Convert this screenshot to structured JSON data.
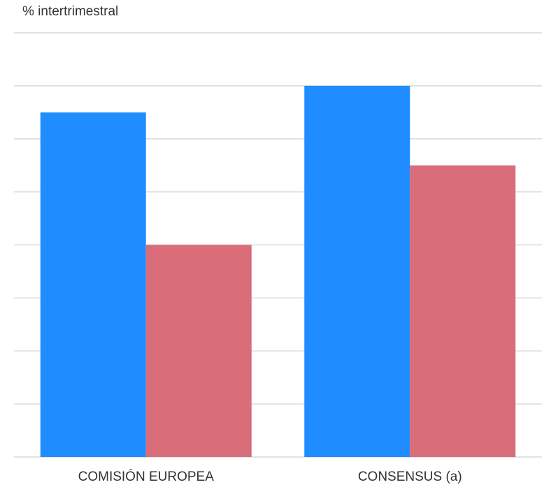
{
  "unit_label": "% intertrimestral",
  "colors": {
    "series_1": "#1f8dff",
    "series_2": "#d96d7a",
    "grid": "#d9d9d9"
  },
  "chart_data": {
    "type": "bar",
    "categories": [
      "COMISIÓN EUROPEA",
      "CONSENSUS (a)"
    ],
    "series": [
      {
        "values": [
          0.65,
          0.7
        ]
      },
      {
        "values": [
          0.4,
          0.55
        ]
      }
    ],
    "ylabel": "% intertrimestral",
    "ylim": [
      0,
      0.8
    ],
    "y_grid_step": 0.1,
    "grid": true,
    "y_tick_labels_shown": false
  }
}
